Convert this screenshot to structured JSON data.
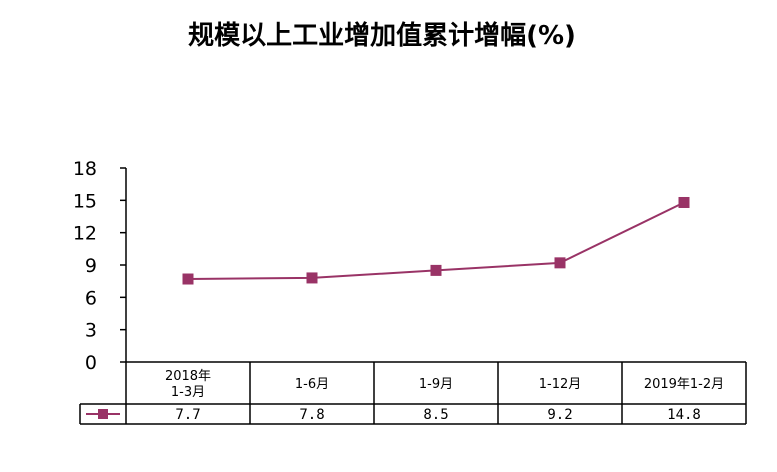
{
  "chart_data": {
    "type": "line",
    "title": "规模以上工业增加值累计增幅(%)",
    "categories": [
      "2018年\n1-3月",
      "1-6月",
      "1-9月",
      "1-12月",
      "2019年1-2月"
    ],
    "series": [
      {
        "values": [
          7.7,
          7.8,
          8.5,
          9.2,
          14.8
        ]
      }
    ],
    "value_labels": [
      "7.7",
      "7.8",
      "8.5",
      "9.2",
      "14.8"
    ],
    "yticks": [
      0,
      3,
      6,
      9,
      12,
      15,
      18
    ],
    "ylim": [
      0,
      18
    ],
    "grid": false,
    "legend": "data-table-left",
    "series_color": "#993366",
    "data_table": true
  }
}
